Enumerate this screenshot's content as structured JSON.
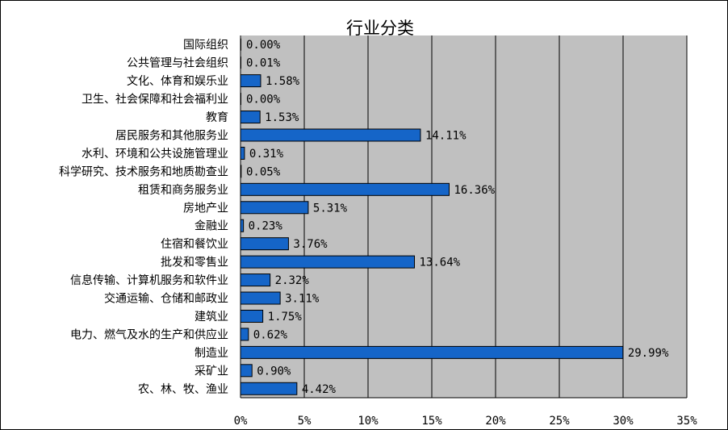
{
  "chart_data": {
    "type": "bar",
    "orientation": "horizontal",
    "title": "行业分类",
    "categories": [
      "国际组织",
      "公共管理与社会组织",
      "文化、体育和娱乐业",
      "卫生、社会保障和社会福利业",
      "教育",
      "居民服务和其他服务业",
      "水利、环境和公共设施管理业",
      "科学研究、技术服务和地质勘查业",
      "租赁和商务服务业",
      "房地产业",
      "金融业",
      "住宿和餐饮业",
      "批发和零售业",
      "信息传输、计算机服务和软件业",
      "交通运输、仓储和邮政业",
      "建筑业",
      "电力、燃气及水的生产和供应业",
      "制造业",
      "采矿业",
      "农、林、牧、渔业"
    ],
    "values": [
      0.0,
      0.01,
      1.58,
      0.0,
      1.53,
      14.11,
      0.31,
      0.05,
      16.36,
      5.31,
      0.23,
      3.76,
      13.64,
      2.32,
      3.11,
      1.75,
      0.62,
      29.99,
      0.9,
      4.42
    ],
    "data_labels": [
      "0.00%",
      "0.01%",
      "1.58%",
      "0.00%",
      "1.53%",
      "14.11%",
      "0.31%",
      "0.05%",
      "16.36%",
      "5.31%",
      "0.23%",
      "3.76%",
      "13.64%",
      "2.32%",
      "3.11%",
      "1.75%",
      "0.62%",
      "29.99%",
      "0.90%",
      "4.42%"
    ],
    "xlim": [
      0,
      35
    ],
    "xticks": [
      0,
      5,
      10,
      15,
      20,
      25,
      30,
      35
    ],
    "xtick_labels": [
      "0%",
      "5%",
      "10%",
      "15%",
      "20%",
      "25%",
      "30%",
      "35%"
    ],
    "grid": "vertical",
    "legend": "none",
    "colors": {
      "bar": "#1565c8",
      "bar_border": "#000000",
      "plot_background": "#c0c0c0",
      "gridline": "#000000"
    }
  }
}
